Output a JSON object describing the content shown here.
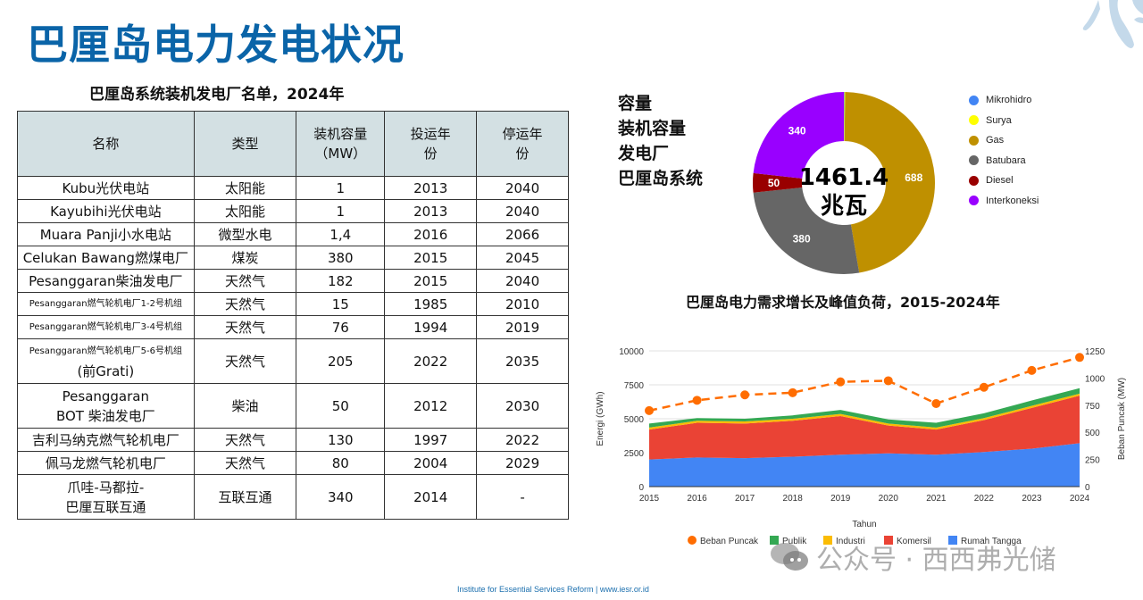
{
  "page": {
    "title": "巴厘岛电力发电状况",
    "footer": "Institute for Essential Services Reform | www.iesr.or.id",
    "watermark": "公众号 · 西西弗光储"
  },
  "table": {
    "title": "巴厘岛系统装机发电厂名单，2024年",
    "headers": [
      "名称",
      "类型",
      "装机容量（MW）",
      "投运年份",
      "停运年份"
    ],
    "rows": [
      {
        "name": "Kubu光伏电站",
        "type": "太阳能",
        "capacity": "1",
        "start": "2013",
        "end": "2040"
      },
      {
        "name": "Kayubihi光伏电站",
        "type": "太阳能",
        "capacity": "1",
        "start": "2013",
        "end": "2040"
      },
      {
        "name": "Muara Panji小水电站",
        "type": "微型水电",
        "capacity": "1,4",
        "start": "2016",
        "end": "2066"
      },
      {
        "name": "Celukan Bawang燃煤电厂",
        "type": "煤炭",
        "capacity": "380",
        "start": "2015",
        "end": "2045"
      },
      {
        "name": "Pesanggaran柴油发电厂",
        "type": "天然气",
        "capacity": "182",
        "start": "2015",
        "end": "2040"
      },
      {
        "name": "Pesanggaran燃气轮机电厂1-2号机组",
        "type": "天然气",
        "capacity": "15",
        "start": "1985",
        "end": "2010"
      },
      {
        "name": "Pesanggaran燃气轮机电厂3-4号机组",
        "type": "天然气",
        "capacity": "76",
        "start": "1994",
        "end": "2019"
      },
      {
        "name": "Pesanggaran燃气轮机电厂5-6号机组",
        "name2": "(前Grati)",
        "type": "天然气",
        "capacity": "205",
        "start": "2022",
        "end": "2035"
      },
      {
        "name": "Pesanggaran",
        "name2": "BOT 柴油发电厂",
        "type": "柴油",
        "capacity": "50",
        "start": "2012",
        "end": "2030"
      },
      {
        "name": "吉利马纳克燃气轮机电厂",
        "type": "天然气",
        "capacity": "130",
        "start": "1997",
        "end": "2022"
      },
      {
        "name": "佩马龙燃气轮机电厂",
        "type": "天然气",
        "capacity": "80",
        "start": "2004",
        "end": "2029"
      },
      {
        "name": "爪哇-马都拉-",
        "name2": "巴厘互联互通",
        "type": "互联互通",
        "capacity": "340",
        "start": "2014",
        "end": "-"
      }
    ]
  },
  "chart_data": [
    {
      "type": "pie",
      "title": "容量 装机容量 发电厂 巴厘岛系统",
      "title_lines": [
        "容量",
        "装机容量",
        "发电厂",
        "巴厘岛系统"
      ],
      "center_value": "1461.4",
      "center_unit": "兆瓦",
      "labels": [
        "Mikrohidro",
        "Surya",
        "Gas",
        "Batubara",
        "Diesel",
        "Interkoneksi"
      ],
      "values": [
        1.4,
        2,
        688,
        380,
        50,
        340
      ],
      "data_labels": [
        "",
        "",
        "688",
        "380",
        "50",
        "340"
      ],
      "colors": [
        "#4285f4",
        "#ffff00",
        "#bf9000",
        "#666666",
        "#990000",
        "#9900ff"
      ],
      "legend": "right"
    },
    {
      "type": "area",
      "title": "巴厘岛电力需求增长及峰值负荷，2015-2024年",
      "xlabel": "Tahun",
      "ylabel": "Energi (GWh)",
      "y2label": "Beban Puncak (MW)",
      "categories": [
        "2015",
        "2016",
        "2017",
        "2018",
        "2019",
        "2020",
        "2021",
        "2022",
        "2023",
        "2024"
      ],
      "ylim": [
        0,
        10000
      ],
      "yticks": [
        "0",
        "2500",
        "5000",
        "7500",
        "10000"
      ],
      "y2lim": [
        0,
        1250
      ],
      "y2ticks": [
        "0",
        "250",
        "500",
        "750",
        "1000",
        "1250"
      ],
      "grid": true,
      "legend": "bottom",
      "stacked_series": [
        {
          "name": "Rumah Tangga",
          "color": "#4285f4",
          "values": [
            2000,
            2150,
            2100,
            2200,
            2350,
            2450,
            2350,
            2550,
            2800,
            3200
          ]
        },
        {
          "name": "Komersil",
          "color": "#ea4335",
          "values": [
            2200,
            2550,
            2550,
            2650,
            2850,
            2050,
            1850,
            2350,
            3000,
            3500
          ]
        },
        {
          "name": "Industri",
          "color": "#fbbc04",
          "values": [
            150,
            150,
            150,
            150,
            150,
            150,
            150,
            150,
            150,
            150
          ]
        },
        {
          "name": "Publik",
          "color": "#34a853",
          "values": [
            300,
            200,
            200,
            250,
            300,
            300,
            350,
            350,
            400,
            400
          ]
        }
      ],
      "line_series": {
        "name": "Beban Puncak",
        "color": "#ff6d01",
        "axis": "right",
        "values": [
          700,
          795,
          845,
          865,
          965,
          975,
          765,
          915,
          1070,
          1190
        ]
      },
      "legend_order": [
        "Beban Puncak",
        "Publik",
        "Industri",
        "Komersil",
        "Rumah Tangga"
      ]
    }
  ]
}
